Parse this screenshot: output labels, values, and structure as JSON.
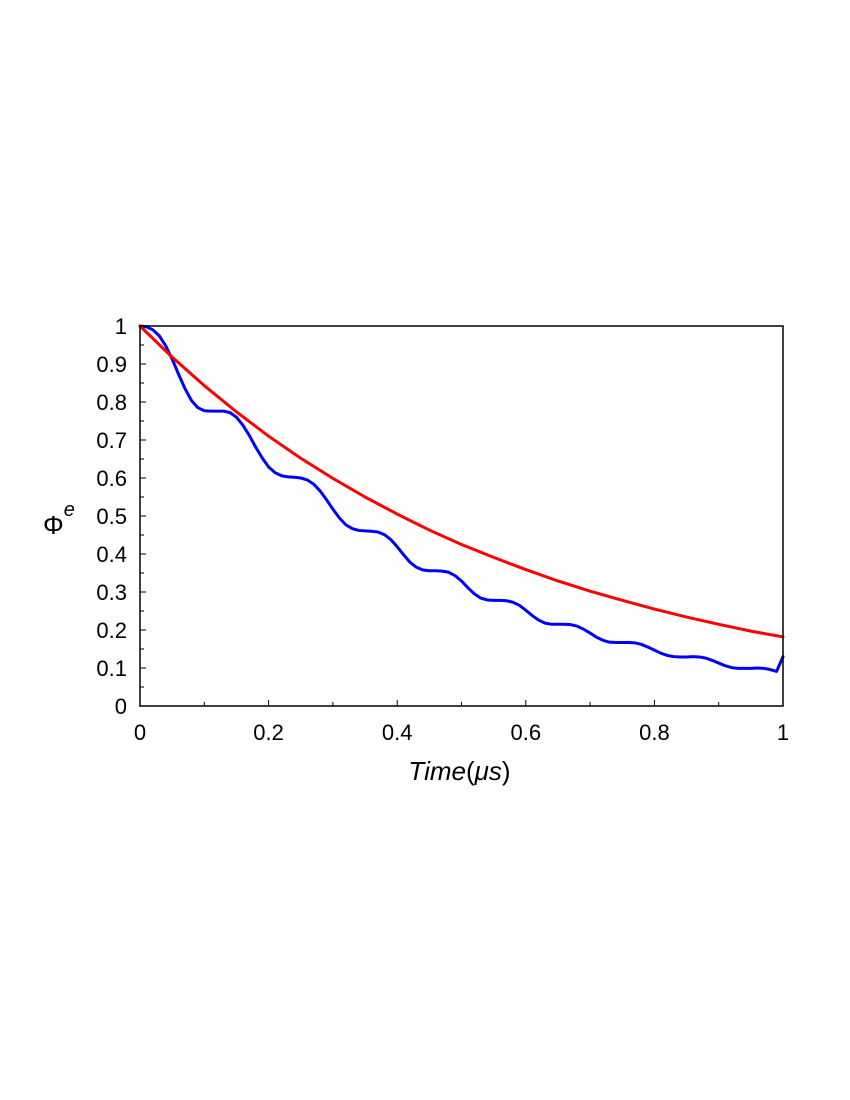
{
  "chart_data": {
    "type": "line",
    "xlabel": {
      "main": "Time",
      "open": "(",
      "unit": "μs",
      "close": ")"
    },
    "ylabel": {
      "base": "Φ",
      "sup": "e"
    },
    "xlim": [
      0,
      1
    ],
    "ylim": [
      0,
      1
    ],
    "xticks": [
      0,
      0.2,
      0.4,
      0.6,
      0.8,
      1
    ],
    "xtick_labels": [
      "0",
      "0.2",
      "0.4",
      "0.6",
      "0.8",
      "1"
    ],
    "yticks": [
      0,
      0.1,
      0.2,
      0.3,
      0.4,
      0.5,
      0.6,
      0.7,
      0.8,
      0.9,
      1
    ],
    "ytick_labels": [
      "0",
      "0.1",
      "0.2",
      "0.3",
      "0.4",
      "0.5",
      "0.6",
      "0.7",
      "0.8",
      "0.9",
      "1"
    ],
    "grid": false,
    "series": [
      {
        "color": "#0000ff",
        "x": [
          0,
          0.01,
          0.02,
          0.03,
          0.04,
          0.05,
          0.06,
          0.07,
          0.08,
          0.09,
          0.1,
          0.11,
          0.12,
          0.13,
          0.14,
          0.15,
          0.16,
          0.17,
          0.18,
          0.19,
          0.2,
          0.21,
          0.22,
          0.23,
          0.24,
          0.25,
          0.26,
          0.27,
          0.28,
          0.29,
          0.3,
          0.31,
          0.32,
          0.33,
          0.34,
          0.35,
          0.36,
          0.37,
          0.38,
          0.39,
          0.4,
          0.41,
          0.42,
          0.43,
          0.44,
          0.45,
          0.46,
          0.47,
          0.48,
          0.49,
          0.5,
          0.51,
          0.52,
          0.53,
          0.54,
          0.55,
          0.56,
          0.57,
          0.58,
          0.59,
          0.6,
          0.61,
          0.62,
          0.63,
          0.64,
          0.65,
          0.66,
          0.67,
          0.68,
          0.69,
          0.7,
          0.71,
          0.72,
          0.73,
          0.74,
          0.75,
          0.76,
          0.77,
          0.78,
          0.79,
          0.8,
          0.81,
          0.82,
          0.83,
          0.84,
          0.85,
          0.86,
          0.87,
          0.88,
          0.89,
          0.9,
          0.91,
          0.92,
          0.93,
          0.94,
          0.95,
          0.96,
          0.97,
          0.98,
          0.99,
          1.0
        ],
        "values": [
          1.0,
          0.998,
          0.99,
          0.974,
          0.948,
          0.913,
          0.873,
          0.835,
          0.804,
          0.785,
          0.777,
          0.776,
          0.776,
          0.776,
          0.772,
          0.76,
          0.739,
          0.712,
          0.681,
          0.653,
          0.629,
          0.614,
          0.606,
          0.603,
          0.602,
          0.6,
          0.595,
          0.584,
          0.566,
          0.543,
          0.518,
          0.495,
          0.477,
          0.467,
          0.462,
          0.461,
          0.46,
          0.458,
          0.451,
          0.438,
          0.419,
          0.398,
          0.378,
          0.365,
          0.358,
          0.356,
          0.356,
          0.355,
          0.352,
          0.343,
          0.329,
          0.311,
          0.295,
          0.284,
          0.279,
          0.278,
          0.278,
          0.277,
          0.273,
          0.265,
          0.252,
          0.238,
          0.226,
          0.218,
          0.215,
          0.215,
          0.215,
          0.214,
          0.21,
          0.202,
          0.192,
          0.181,
          0.173,
          0.168,
          0.167,
          0.167,
          0.167,
          0.166,
          0.162,
          0.155,
          0.147,
          0.139,
          0.133,
          0.13,
          0.129,
          0.129,
          0.13,
          0.129,
          0.126,
          0.12,
          0.113,
          0.106,
          0.101,
          0.099,
          0.099,
          0.099,
          0.1,
          0.099,
          0.096,
          0.091,
          0.13
        ]
      },
      {
        "color": "#ff0000",
        "x": [
          0,
          0.05,
          0.1,
          0.15,
          0.2,
          0.25,
          0.3,
          0.35,
          0.4,
          0.45,
          0.5,
          0.55,
          0.6,
          0.65,
          0.7,
          0.75,
          0.8,
          0.85,
          0.9,
          0.95,
          1.0
        ],
        "values": [
          1.0,
          0.918,
          0.843,
          0.774,
          0.71,
          0.652,
          0.599,
          0.55,
          0.505,
          0.463,
          0.425,
          0.391,
          0.359,
          0.329,
          0.302,
          0.278,
          0.255,
          0.234,
          0.215,
          0.197,
          0.182
        ]
      }
    ]
  }
}
